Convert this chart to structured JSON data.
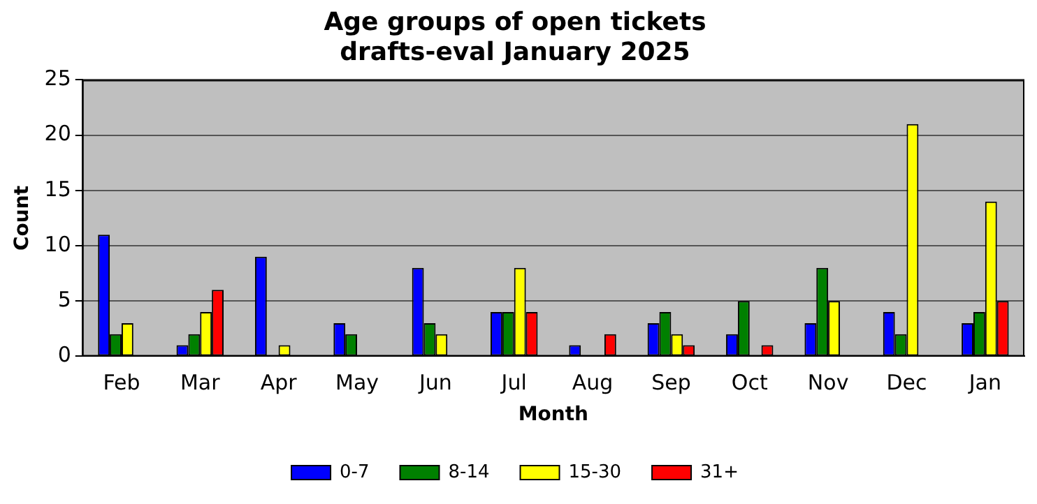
{
  "chart_data": {
    "type": "bar",
    "title": "Age groups of open tickets\ndrafts-eval January 2025",
    "xlabel": "Month",
    "ylabel": "Count",
    "categories": [
      "Feb",
      "Mar",
      "Apr",
      "May",
      "Jun",
      "Jul",
      "Aug",
      "Sep",
      "Oct",
      "Nov",
      "Dec",
      "Jan"
    ],
    "series": [
      {
        "name": "0-7",
        "color": "#0000ff",
        "values": [
          11,
          1,
          9,
          3,
          8,
          4,
          1,
          3,
          2,
          3,
          4,
          3
        ]
      },
      {
        "name": "8-14",
        "color": "#008000",
        "values": [
          2,
          2,
          0,
          2,
          3,
          4,
          0,
          4,
          5,
          8,
          2,
          4
        ]
      },
      {
        "name": "15-30",
        "color": "#ffff00",
        "values": [
          3,
          4,
          1,
          0,
          2,
          8,
          0,
          2,
          0,
          5,
          21,
          14
        ]
      },
      {
        "name": "31+",
        "color": "#ff0000",
        "values": [
          0,
          6,
          0,
          0,
          0,
          4,
          2,
          1,
          1,
          0,
          0,
          5
        ]
      }
    ],
    "ylim": [
      0,
      25
    ],
    "yticks": [
      0,
      5,
      10,
      15,
      20,
      25
    ],
    "grid": "y",
    "legend": "bottom"
  }
}
